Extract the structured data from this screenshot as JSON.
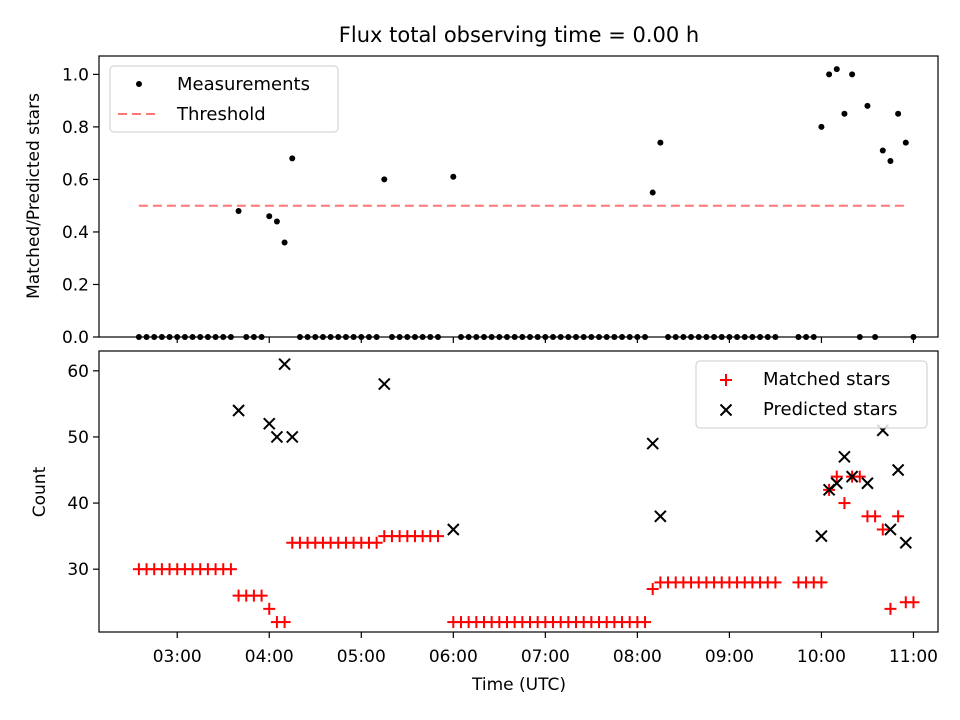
{
  "chart_data": [
    {
      "type": "scatter",
      "title": "Flux total observing time = 0.00 h",
      "xlabel": "",
      "ylabel": "Matched/Predicted stars",
      "ylim": [
        0,
        1.07
      ],
      "xlim": [
        "02:09",
        "11:16"
      ],
      "yticks": [
        "0.0",
        "0.2",
        "0.4",
        "0.6",
        "0.8",
        "1.0"
      ],
      "ytick_values": [
        0,
        0.2,
        0.4,
        0.6,
        0.8,
        1.0
      ],
      "xtick_values": [
        "03:00",
        "04:00",
        "05:00",
        "06:00",
        "07:00",
        "08:00",
        "09:00",
        "10:00",
        "11:00"
      ],
      "grid": false,
      "legend_position": "upper left",
      "legend": {
        "measurements": "Measurements",
        "threshold": "Threshold"
      },
      "threshold": {
        "value": 0.5,
        "x_start": "02:35",
        "x_end": "10:57",
        "color": "#ff7777"
      },
      "measurements": {
        "color": "#000000",
        "points": [
          [
            "02:35",
            0
          ],
          [
            "02:40",
            0
          ],
          [
            "02:45",
            0
          ],
          [
            "02:50",
            0
          ],
          [
            "02:55",
            0
          ],
          [
            "03:00",
            0
          ],
          [
            "03:05",
            0
          ],
          [
            "03:10",
            0
          ],
          [
            "03:15",
            0
          ],
          [
            "03:20",
            0
          ],
          [
            "03:25",
            0
          ],
          [
            "03:30",
            0
          ],
          [
            "03:35",
            0
          ],
          [
            "03:40",
            0.48
          ],
          [
            "03:45",
            0
          ],
          [
            "03:50",
            0
          ],
          [
            "03:55",
            0
          ],
          [
            "04:00",
            0.46
          ],
          [
            "04:05",
            0.44
          ],
          [
            "04:10",
            0.36
          ],
          [
            "04:15",
            0.68
          ],
          [
            "04:20",
            0
          ],
          [
            "04:25",
            0
          ],
          [
            "04:30",
            0
          ],
          [
            "04:35",
            0
          ],
          [
            "04:40",
            0
          ],
          [
            "04:45",
            0
          ],
          [
            "04:50",
            0
          ],
          [
            "04:55",
            0
          ],
          [
            "05:00",
            0
          ],
          [
            "05:05",
            0
          ],
          [
            "05:10",
            0
          ],
          [
            "05:15",
            0.6
          ],
          [
            "05:20",
            0
          ],
          [
            "05:25",
            0
          ],
          [
            "05:30",
            0
          ],
          [
            "05:35",
            0
          ],
          [
            "05:40",
            0
          ],
          [
            "05:45",
            0
          ],
          [
            "05:50",
            0
          ],
          [
            "06:00",
            0.61
          ],
          [
            "06:05",
            0
          ],
          [
            "06:10",
            0
          ],
          [
            "06:15",
            0
          ],
          [
            "06:20",
            0
          ],
          [
            "06:25",
            0
          ],
          [
            "06:30",
            0
          ],
          [
            "06:35",
            0
          ],
          [
            "06:40",
            0
          ],
          [
            "06:45",
            0
          ],
          [
            "06:50",
            0
          ],
          [
            "06:55",
            0
          ],
          [
            "07:00",
            0
          ],
          [
            "07:05",
            0
          ],
          [
            "07:10",
            0
          ],
          [
            "07:15",
            0
          ],
          [
            "07:20",
            0
          ],
          [
            "07:25",
            0
          ],
          [
            "07:30",
            0
          ],
          [
            "07:35",
            0
          ],
          [
            "07:40",
            0
          ],
          [
            "07:45",
            0
          ],
          [
            "07:50",
            0
          ],
          [
            "07:55",
            0
          ],
          [
            "08:00",
            0
          ],
          [
            "08:05",
            0
          ],
          [
            "08:10",
            0.55
          ],
          [
            "08:15",
            0.74
          ],
          [
            "08:20",
            0
          ],
          [
            "08:25",
            0
          ],
          [
            "08:30",
            0
          ],
          [
            "08:35",
            0
          ],
          [
            "08:40",
            0
          ],
          [
            "08:45",
            0
          ],
          [
            "08:50",
            0
          ],
          [
            "08:55",
            0
          ],
          [
            "09:00",
            0
          ],
          [
            "09:05",
            0
          ],
          [
            "09:10",
            0
          ],
          [
            "09:15",
            0
          ],
          [
            "09:20",
            0
          ],
          [
            "09:25",
            0
          ],
          [
            "09:30",
            0
          ],
          [
            "09:45",
            0
          ],
          [
            "09:50",
            0
          ],
          [
            "09:55",
            0
          ],
          [
            "10:00",
            0.8
          ],
          [
            "10:05",
            1.0
          ],
          [
            "10:10",
            1.02
          ],
          [
            "10:15",
            0.85
          ],
          [
            "10:20",
            1.0
          ],
          [
            "10:25",
            0
          ],
          [
            "10:30",
            0.88
          ],
          [
            "10:35",
            0
          ],
          [
            "10:40",
            0.71
          ],
          [
            "10:45",
            0.67
          ],
          [
            "10:50",
            0.85
          ],
          [
            "10:55",
            0.74
          ],
          [
            "11:00",
            0
          ]
        ]
      }
    },
    {
      "type": "scatter",
      "title": "",
      "xlabel": "Time (UTC)",
      "ylabel": "Count",
      "ylim": [
        20.5,
        63
      ],
      "xlim": [
        "02:09",
        "11:16"
      ],
      "yticks": [
        "30",
        "40",
        "50",
        "60"
      ],
      "ytick_values": [
        30,
        40,
        50,
        60
      ],
      "xticks": [
        "03:00",
        "04:00",
        "05:00",
        "06:00",
        "07:00",
        "08:00",
        "09:00",
        "10:00",
        "11:00"
      ],
      "grid": false,
      "legend_position": "upper right",
      "series": [
        {
          "name": "Matched stars",
          "marker": "plus",
          "color": "#ff0000",
          "points": [
            [
              "02:35",
              30
            ],
            [
              "02:40",
              30
            ],
            [
              "02:45",
              30
            ],
            [
              "02:50",
              30
            ],
            [
              "02:55",
              30
            ],
            [
              "03:00",
              30
            ],
            [
              "03:05",
              30
            ],
            [
              "03:10",
              30
            ],
            [
              "03:15",
              30
            ],
            [
              "03:20",
              30
            ],
            [
              "03:25",
              30
            ],
            [
              "03:30",
              30
            ],
            [
              "03:35",
              30
            ],
            [
              "03:40",
              26
            ],
            [
              "03:45",
              26
            ],
            [
              "03:50",
              26
            ],
            [
              "03:55",
              26
            ],
            [
              "04:00",
              24
            ],
            [
              "04:05",
              22
            ],
            [
              "04:10",
              22
            ],
            [
              "04:15",
              34
            ],
            [
              "04:20",
              34
            ],
            [
              "04:25",
              34
            ],
            [
              "04:30",
              34
            ],
            [
              "04:35",
              34
            ],
            [
              "04:40",
              34
            ],
            [
              "04:45",
              34
            ],
            [
              "04:50",
              34
            ],
            [
              "04:55",
              34
            ],
            [
              "05:00",
              34
            ],
            [
              "05:05",
              34
            ],
            [
              "05:10",
              34
            ],
            [
              "05:15",
              35
            ],
            [
              "05:20",
              35
            ],
            [
              "05:25",
              35
            ],
            [
              "05:30",
              35
            ],
            [
              "05:35",
              35
            ],
            [
              "05:40",
              35
            ],
            [
              "05:45",
              35
            ],
            [
              "05:50",
              35
            ],
            [
              "06:00",
              22
            ],
            [
              "06:05",
              22
            ],
            [
              "06:10",
              22
            ],
            [
              "06:15",
              22
            ],
            [
              "06:20",
              22
            ],
            [
              "06:25",
              22
            ],
            [
              "06:30",
              22
            ],
            [
              "06:35",
              22
            ],
            [
              "06:40",
              22
            ],
            [
              "06:45",
              22
            ],
            [
              "06:50",
              22
            ],
            [
              "06:55",
              22
            ],
            [
              "07:00",
              22
            ],
            [
              "07:05",
              22
            ],
            [
              "07:10",
              22
            ],
            [
              "07:15",
              22
            ],
            [
              "07:20",
              22
            ],
            [
              "07:25",
              22
            ],
            [
              "07:30",
              22
            ],
            [
              "07:35",
              22
            ],
            [
              "07:40",
              22
            ],
            [
              "07:45",
              22
            ],
            [
              "07:50",
              22
            ],
            [
              "07:55",
              22
            ],
            [
              "08:00",
              22
            ],
            [
              "08:05",
              22
            ],
            [
              "08:10",
              27
            ],
            [
              "08:15",
              28
            ],
            [
              "08:20",
              28
            ],
            [
              "08:25",
              28
            ],
            [
              "08:30",
              28
            ],
            [
              "08:35",
              28
            ],
            [
              "08:40",
              28
            ],
            [
              "08:45",
              28
            ],
            [
              "08:50",
              28
            ],
            [
              "08:55",
              28
            ],
            [
              "09:00",
              28
            ],
            [
              "09:05",
              28
            ],
            [
              "09:10",
              28
            ],
            [
              "09:15",
              28
            ],
            [
              "09:20",
              28
            ],
            [
              "09:25",
              28
            ],
            [
              "09:30",
              28
            ],
            [
              "09:45",
              28
            ],
            [
              "09:50",
              28
            ],
            [
              "09:55",
              28
            ],
            [
              "10:00",
              28
            ],
            [
              "10:05",
              42
            ],
            [
              "10:10",
              44
            ],
            [
              "10:15",
              40
            ],
            [
              "10:20",
              44
            ],
            [
              "10:25",
              44
            ],
            [
              "10:30",
              38
            ],
            [
              "10:35",
              38
            ],
            [
              "10:40",
              36
            ],
            [
              "10:45",
              24
            ],
            [
              "10:50",
              38
            ],
            [
              "10:55",
              25
            ],
            [
              "11:00",
              25
            ]
          ]
        },
        {
          "name": "Predicted stars",
          "marker": "x",
          "color": "#000000",
          "points": [
            [
              "03:40",
              54
            ],
            [
              "04:00",
              52
            ],
            [
              "04:05",
              50
            ],
            [
              "04:10",
              61
            ],
            [
              "04:15",
              50
            ],
            [
              "05:15",
              58
            ],
            [
              "06:00",
              36
            ],
            [
              "08:10",
              49
            ],
            [
              "08:15",
              38
            ],
            [
              "10:00",
              35
            ],
            [
              "10:05",
              42
            ],
            [
              "10:10",
              43
            ],
            [
              "10:15",
              47
            ],
            [
              "10:20",
              44
            ],
            [
              "10:30",
              43
            ],
            [
              "10:40",
              51
            ],
            [
              "10:45",
              36
            ],
            [
              "10:50",
              45
            ],
            [
              "10:55",
              34
            ]
          ]
        }
      ]
    }
  ]
}
